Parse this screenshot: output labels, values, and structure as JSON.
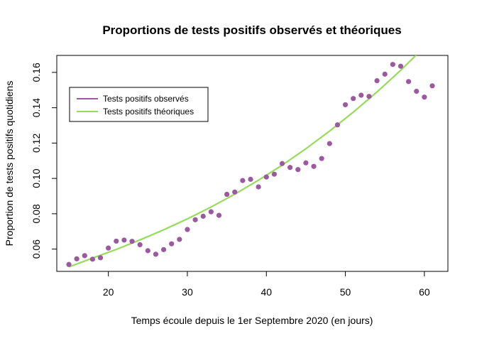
{
  "chart_data": {
    "type": "scatter",
    "title": "Proportions de tests positifs observés et théoriques",
    "xlabel": "Temps écoule depuis le 1er Septembre 2020 (en jours)",
    "ylabel": "Proportion de tests positifs quotidiens",
    "xlim": [
      15,
      61
    ],
    "ylim": [
      0.049,
      0.168
    ],
    "x_ticks": [
      20,
      30,
      40,
      50,
      60
    ],
    "y_ticks": [
      0.06,
      0.08,
      0.1,
      0.12,
      0.14,
      0.16
    ],
    "x_tick_labels": [
      "20",
      "30",
      "40",
      "50",
      "60"
    ],
    "y_tick_labels": [
      "0.06",
      "0.08",
      "0.10",
      "0.12",
      "0.14",
      "0.16"
    ],
    "grid": false,
    "legend_position": "top-left",
    "legend": [
      {
        "label": "Tests positifs observés",
        "color": "#9B59A0"
      },
      {
        "label": "Tests positifs théoriques",
        "color": "#96DC5A"
      }
    ],
    "series": [
      {
        "name": "Tests positifs observés",
        "kind": "points",
        "color": "#9B59A0",
        "x": [
          15,
          16,
          17,
          18,
          19,
          20,
          21,
          22,
          23,
          24,
          25,
          26,
          27,
          28,
          29,
          30,
          31,
          32,
          33,
          34,
          35,
          36,
          37,
          38,
          39,
          40,
          41,
          42,
          43,
          44,
          45,
          46,
          47,
          48,
          49,
          50,
          51,
          52,
          53,
          54,
          55,
          56,
          57,
          58,
          59,
          60,
          61
        ],
        "y": [
          0.0513,
          0.0545,
          0.0563,
          0.0543,
          0.0551,
          0.0606,
          0.0645,
          0.0651,
          0.0644,
          0.0625,
          0.0591,
          0.0571,
          0.0597,
          0.063,
          0.0655,
          0.0711,
          0.0766,
          0.0786,
          0.0811,
          0.0791,
          0.091,
          0.0923,
          0.0988,
          0.0995,
          0.0952,
          0.1008,
          0.1024,
          0.1084,
          0.1062,
          0.105,
          0.1088,
          0.1068,
          0.1113,
          0.1197,
          0.1303,
          0.1417,
          0.1452,
          0.1471,
          0.1464,
          0.1553,
          0.159,
          0.1645,
          0.1635,
          0.1548,
          0.1493,
          0.146,
          0.1524
        ]
      },
      {
        "name": "Tests positifs théoriques",
        "kind": "line",
        "color": "#96DC5A",
        "x": [
          15,
          18,
          21,
          24,
          27,
          30,
          33,
          36,
          39,
          42,
          45,
          48,
          51,
          54,
          57,
          60,
          61
        ],
        "y": [
          0.0499,
          0.0549,
          0.0598,
          0.0652,
          0.0709,
          0.0771,
          0.0838,
          0.0911,
          0.099,
          0.1075,
          0.1168,
          0.1268,
          0.1375,
          0.1489,
          0.1612,
          0.1743,
          0.1789
        ]
      }
    ]
  }
}
